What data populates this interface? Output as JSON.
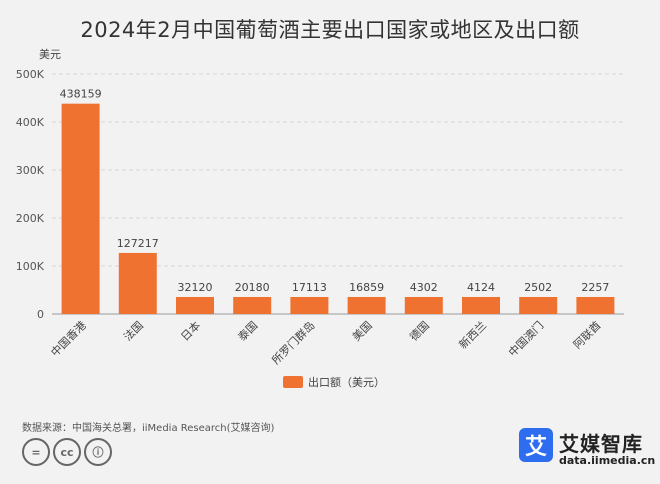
{
  "title": "2024年2月中国葡萄酒主要出口国家或地区及出口额",
  "source": "数据来源：中国海关总署，iiMedia Research(艾媒咨询)",
  "license_icons": [
    "equals-icon",
    "cc-icon",
    "person-icon"
  ],
  "license_labels": [
    "=",
    "cc",
    "ⓘ"
  ],
  "brand": {
    "logo_char": "艾",
    "name": "艾媒智库",
    "url": "data.iimedia.cn"
  },
  "chart_data": {
    "type": "bar",
    "title": "2024年2月中国葡萄酒主要出口国家或地区及出口额",
    "ylabel": "美元",
    "xlabel": "",
    "categories": [
      "中国香港",
      "法国",
      "日本",
      "泰国",
      "所罗门群岛",
      "美国",
      "德国",
      "新西兰",
      "中国澳门",
      "阿联酋"
    ],
    "series": [
      {
        "name": "出口额（美元）",
        "values": [
          438159,
          127217,
          32120,
          20180,
          17113,
          16859,
          4302,
          4124,
          2502,
          2257
        ]
      }
    ],
    "ylim": [
      0,
      500000
    ],
    "yticks": [
      0,
      100000,
      200000,
      300000,
      400000,
      500000
    ],
    "ytick_labels": [
      "0",
      "100K",
      "200K",
      "300K",
      "400K",
      "500K"
    ],
    "data_labels": [
      "438159",
      "127217",
      "32120",
      "20180",
      "17113",
      "16859",
      "4302",
      "4124",
      "2502",
      "2257"
    ],
    "grid": true,
    "legend": "bottom",
    "bar_color": "#f07230"
  }
}
